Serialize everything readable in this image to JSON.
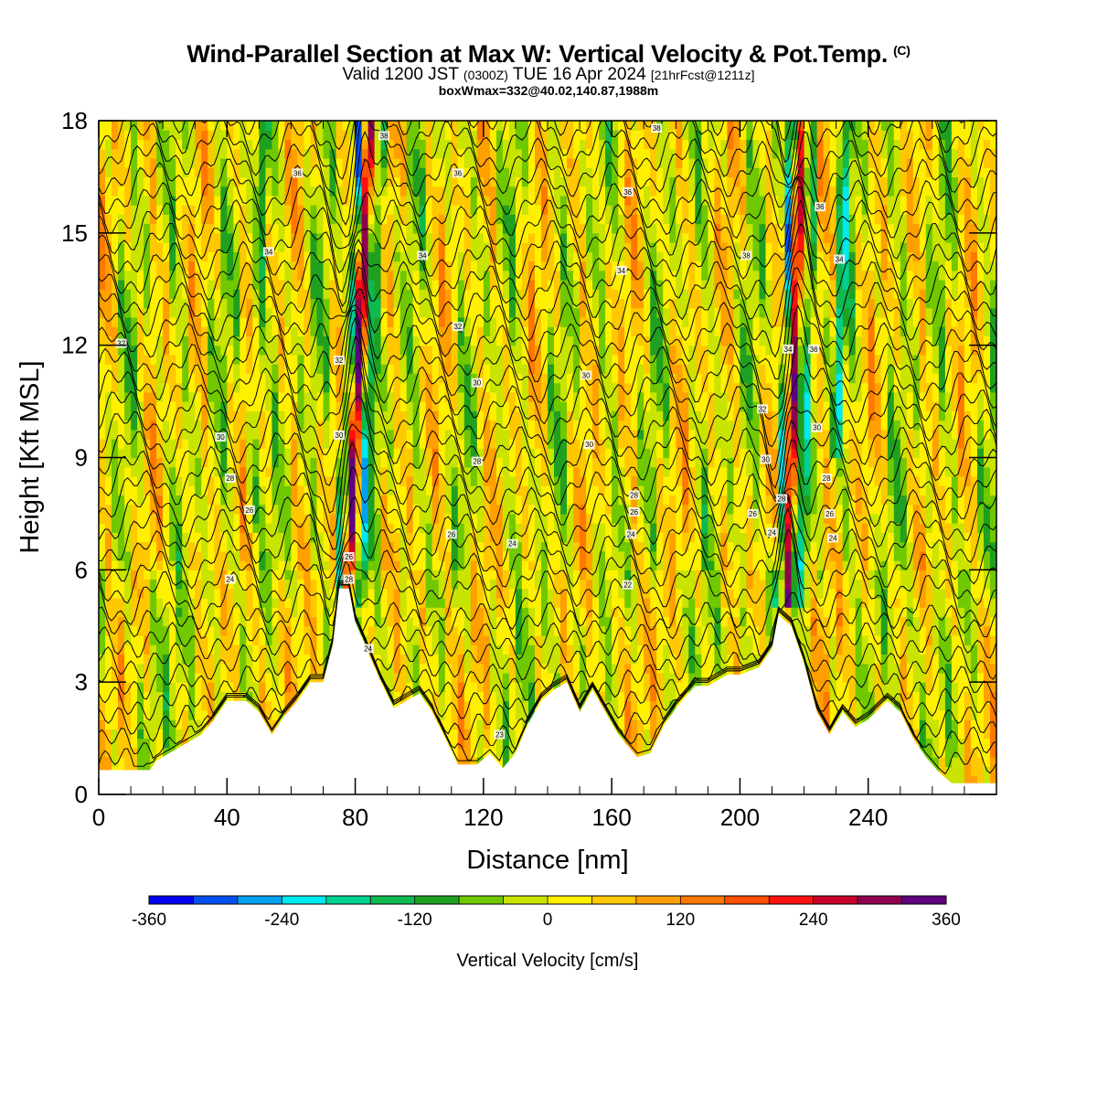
{
  "header": {
    "title": "Wind-Parallel Section at Max W: Vertical Velocity & Pot.Temp.",
    "title_mark": "(C)",
    "valid_a": "Valid 1200 JST",
    "valid_b": "(0300Z)",
    "valid_c": "TUE 16 Apr 2024",
    "valid_d": "[21hrFcst@1211z]",
    "box": "boxWmax=332@40.02,140.87,1988m"
  },
  "chart_data": {
    "type": "heatmap",
    "xlabel": "Distance [nm]",
    "ylabel": "Height [Kft MSL]",
    "xlim": [
      0,
      280
    ],
    "ylim": [
      0,
      18
    ],
    "xticks": [
      0,
      40,
      80,
      120,
      160,
      200,
      240
    ],
    "yticks": [
      0,
      3,
      6,
      9,
      12,
      15,
      18
    ],
    "colorbar": {
      "title": "Vertical Velocity [cm/s]",
      "min": -360,
      "max": 360,
      "step": 40,
      "tick_labels": [
        -360,
        -240,
        -120,
        0,
        120,
        240,
        360
      ],
      "colors": [
        "#0000f0",
        "#0050f0",
        "#00a0f0",
        "#00e8f0",
        "#00d090",
        "#10b850",
        "#20a020",
        "#70c800",
        "#c8e400",
        "#fff000",
        "#ffc800",
        "#ffa000",
        "#ff7800",
        "#ff5000",
        "#ff1010",
        "#c80028",
        "#900050",
        "#600080"
      ]
    },
    "updraft_cores": [
      {
        "x": 78,
        "w_max": 332
      },
      {
        "x": 215,
        "w_max": 300
      }
    ],
    "terrain_kft": [
      [
        0,
        0.65
      ],
      [
        16,
        0.65
      ],
      [
        18,
        0.9
      ],
      [
        26,
        1.3
      ],
      [
        32,
        1.6
      ],
      [
        36,
        2.0
      ],
      [
        40,
        2.5
      ],
      [
        46,
        2.5
      ],
      [
        50,
        2.2
      ],
      [
        54,
        1.6
      ],
      [
        58,
        2.1
      ],
      [
        62,
        2.5
      ],
      [
        66,
        3.0
      ],
      [
        70,
        3.0
      ],
      [
        73,
        4.0
      ],
      [
        75,
        5.5
      ],
      [
        78,
        5.5
      ],
      [
        80,
        4.6
      ],
      [
        84,
        3.8
      ],
      [
        88,
        3.0
      ],
      [
        92,
        2.3
      ],
      [
        96,
        2.5
      ],
      [
        100,
        2.7
      ],
      [
        104,
        2.2
      ],
      [
        108,
        1.5
      ],
      [
        112,
        0.8
      ],
      [
        118,
        0.8
      ],
      [
        122,
        1.1
      ],
      [
        126,
        0.7
      ],
      [
        130,
        1.1
      ],
      [
        134,
        1.9
      ],
      [
        138,
        2.5
      ],
      [
        142,
        2.8
      ],
      [
        146,
        3.0
      ],
      [
        150,
        2.2
      ],
      [
        154,
        2.8
      ],
      [
        158,
        2.2
      ],
      [
        162,
        1.6
      ],
      [
        168,
        1.0
      ],
      [
        172,
        1.1
      ],
      [
        176,
        1.8
      ],
      [
        180,
        2.3
      ],
      [
        186,
        2.9
      ],
      [
        190,
        2.9
      ],
      [
        196,
        3.2
      ],
      [
        200,
        3.2
      ],
      [
        206,
        3.4
      ],
      [
        210,
        3.9
      ],
      [
        212,
        4.8
      ],
      [
        216,
        4.5
      ],
      [
        220,
        3.5
      ],
      [
        224,
        2.2
      ],
      [
        228,
        1.6
      ],
      [
        232,
        2.2
      ],
      [
        236,
        1.8
      ],
      [
        240,
        2.0
      ],
      [
        246,
        2.5
      ],
      [
        250,
        2.2
      ],
      [
        254,
        1.5
      ],
      [
        258,
        1.0
      ],
      [
        262,
        0.6
      ],
      [
        266,
        0.3
      ],
      [
        280,
        0.3
      ]
    ],
    "isentrope_labels": [
      "22",
      "24",
      "26",
      "28",
      "30",
      "32",
      "34",
      "36",
      "38"
    ],
    "contour_labels": [
      {
        "x": 7,
        "y": 12.05,
        "t": "32"
      },
      {
        "x": 38,
        "y": 9.55,
        "t": "30"
      },
      {
        "x": 41,
        "y": 8.45,
        "t": "28"
      },
      {
        "x": 47,
        "y": 7.6,
        "t": "26"
      },
      {
        "x": 41,
        "y": 5.75,
        "t": "24"
      },
      {
        "x": 53,
        "y": 14.5,
        "t": "34"
      },
      {
        "x": 62,
        "y": 16.6,
        "t": "36"
      },
      {
        "x": 75,
        "y": 11.6,
        "t": "32"
      },
      {
        "x": 75,
        "y": 9.6,
        "t": "30"
      },
      {
        "x": 78,
        "y": 6.35,
        "t": "26"
      },
      {
        "x": 78,
        "y": 5.75,
        "t": "28"
      },
      {
        "x": 89,
        "y": 17.6,
        "t": "38"
      },
      {
        "x": 84,
        "y": 3.9,
        "t": "24"
      },
      {
        "x": 101,
        "y": 14.4,
        "t": "34"
      },
      {
        "x": 112,
        "y": 16.6,
        "t": "36"
      },
      {
        "x": 112,
        "y": 12.5,
        "t": "32"
      },
      {
        "x": 118,
        "y": 11.0,
        "t": "30"
      },
      {
        "x": 118,
        "y": 8.9,
        "t": "28"
      },
      {
        "x": 110,
        "y": 6.95,
        "t": "26"
      },
      {
        "x": 129,
        "y": 6.7,
        "t": "24"
      },
      {
        "x": 125,
        "y": 1.6,
        "t": "23"
      },
      {
        "x": 152,
        "y": 11.2,
        "t": "30"
      },
      {
        "x": 153,
        "y": 9.35,
        "t": "30"
      },
      {
        "x": 163,
        "y": 14.0,
        "t": "34"
      },
      {
        "x": 165,
        "y": 5.6,
        "t": "22"
      },
      {
        "x": 165,
        "y": 16.1,
        "t": "36"
      },
      {
        "x": 167,
        "y": 8.0,
        "t": "28"
      },
      {
        "x": 167,
        "y": 7.55,
        "t": "26"
      },
      {
        "x": 166,
        "y": 6.95,
        "t": "24"
      },
      {
        "x": 174,
        "y": 17.8,
        "t": "38"
      },
      {
        "x": 202,
        "y": 14.4,
        "t": "38"
      },
      {
        "x": 207,
        "y": 10.3,
        "t": "32"
      },
      {
        "x": 208,
        "y": 8.95,
        "t": "30"
      },
      {
        "x": 213,
        "y": 7.9,
        "t": "28"
      },
      {
        "x": 204,
        "y": 7.5,
        "t": "26"
      },
      {
        "x": 210,
        "y": 7.0,
        "t": "24"
      },
      {
        "x": 215,
        "y": 11.9,
        "t": "34"
      },
      {
        "x": 223,
        "y": 11.9,
        "t": "36"
      },
      {
        "x": 224,
        "y": 9.8,
        "t": "30"
      },
      {
        "x": 225,
        "y": 15.7,
        "t": "36"
      },
      {
        "x": 231,
        "y": 14.3,
        "t": "34"
      },
      {
        "x": 227,
        "y": 8.45,
        "t": "28"
      },
      {
        "x": 228,
        "y": 7.5,
        "t": "26"
      },
      {
        "x": 229,
        "y": 6.85,
        "t": "24"
      }
    ]
  }
}
